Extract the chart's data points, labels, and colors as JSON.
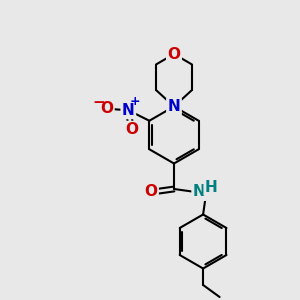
{
  "bg_color": "#e8e8e8",
  "bond_color": "#000000",
  "N_color": "#0000cc",
  "O_color": "#cc0000",
  "NH_color": "#008080",
  "line_width": 1.5,
  "font_size": 11,
  "fig_size": [
    3.0,
    3.0
  ],
  "dpi": 100,
  "xlim": [
    0,
    10
  ],
  "ylim": [
    0,
    10
  ]
}
